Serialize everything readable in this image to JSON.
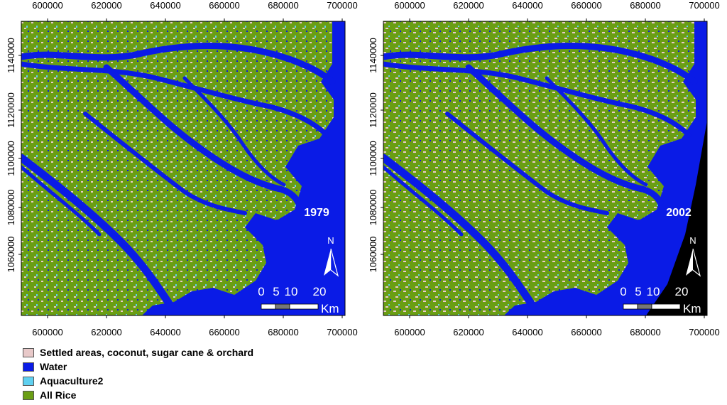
{
  "colors": {
    "settled": "#e8c9c9",
    "water": "#0a1be6",
    "aquaculture": "#5fd0f0",
    "rice": "#6a9e14",
    "ocean_black": "#000000"
  },
  "maps": [
    {
      "year": "1979",
      "x_ticks": [
        "600000",
        "620000",
        "640000",
        "660000",
        "680000",
        "700000"
      ],
      "y_ticks": [
        "1140000",
        "1120000",
        "1100000",
        "1080000",
        "1060000"
      ],
      "scale": {
        "labels": [
          "0",
          "5",
          "10",
          "20"
        ],
        "unit": "Km"
      },
      "north_label": "N"
    },
    {
      "year": "2002",
      "x_ticks": [
        "600000",
        "620000",
        "640000",
        "660000",
        "680000",
        "700000"
      ],
      "y_ticks": [
        "1140000",
        "1120000",
        "1100000",
        "1080000",
        "1060000"
      ],
      "scale": {
        "labels": [
          "0",
          "5",
          "10",
          "20"
        ],
        "unit": "Km"
      },
      "north_label": "N"
    }
  ],
  "legend": [
    {
      "label": "Settled areas, coconut, sugar cane & orchard",
      "color": "#e8c9c9"
    },
    {
      "label": "Water",
      "color": "#0a1be6"
    },
    {
      "label": "Aquaculture2",
      "color": "#5fd0f0"
    },
    {
      "label": "All Rice",
      "color": "#6a9e14"
    }
  ]
}
